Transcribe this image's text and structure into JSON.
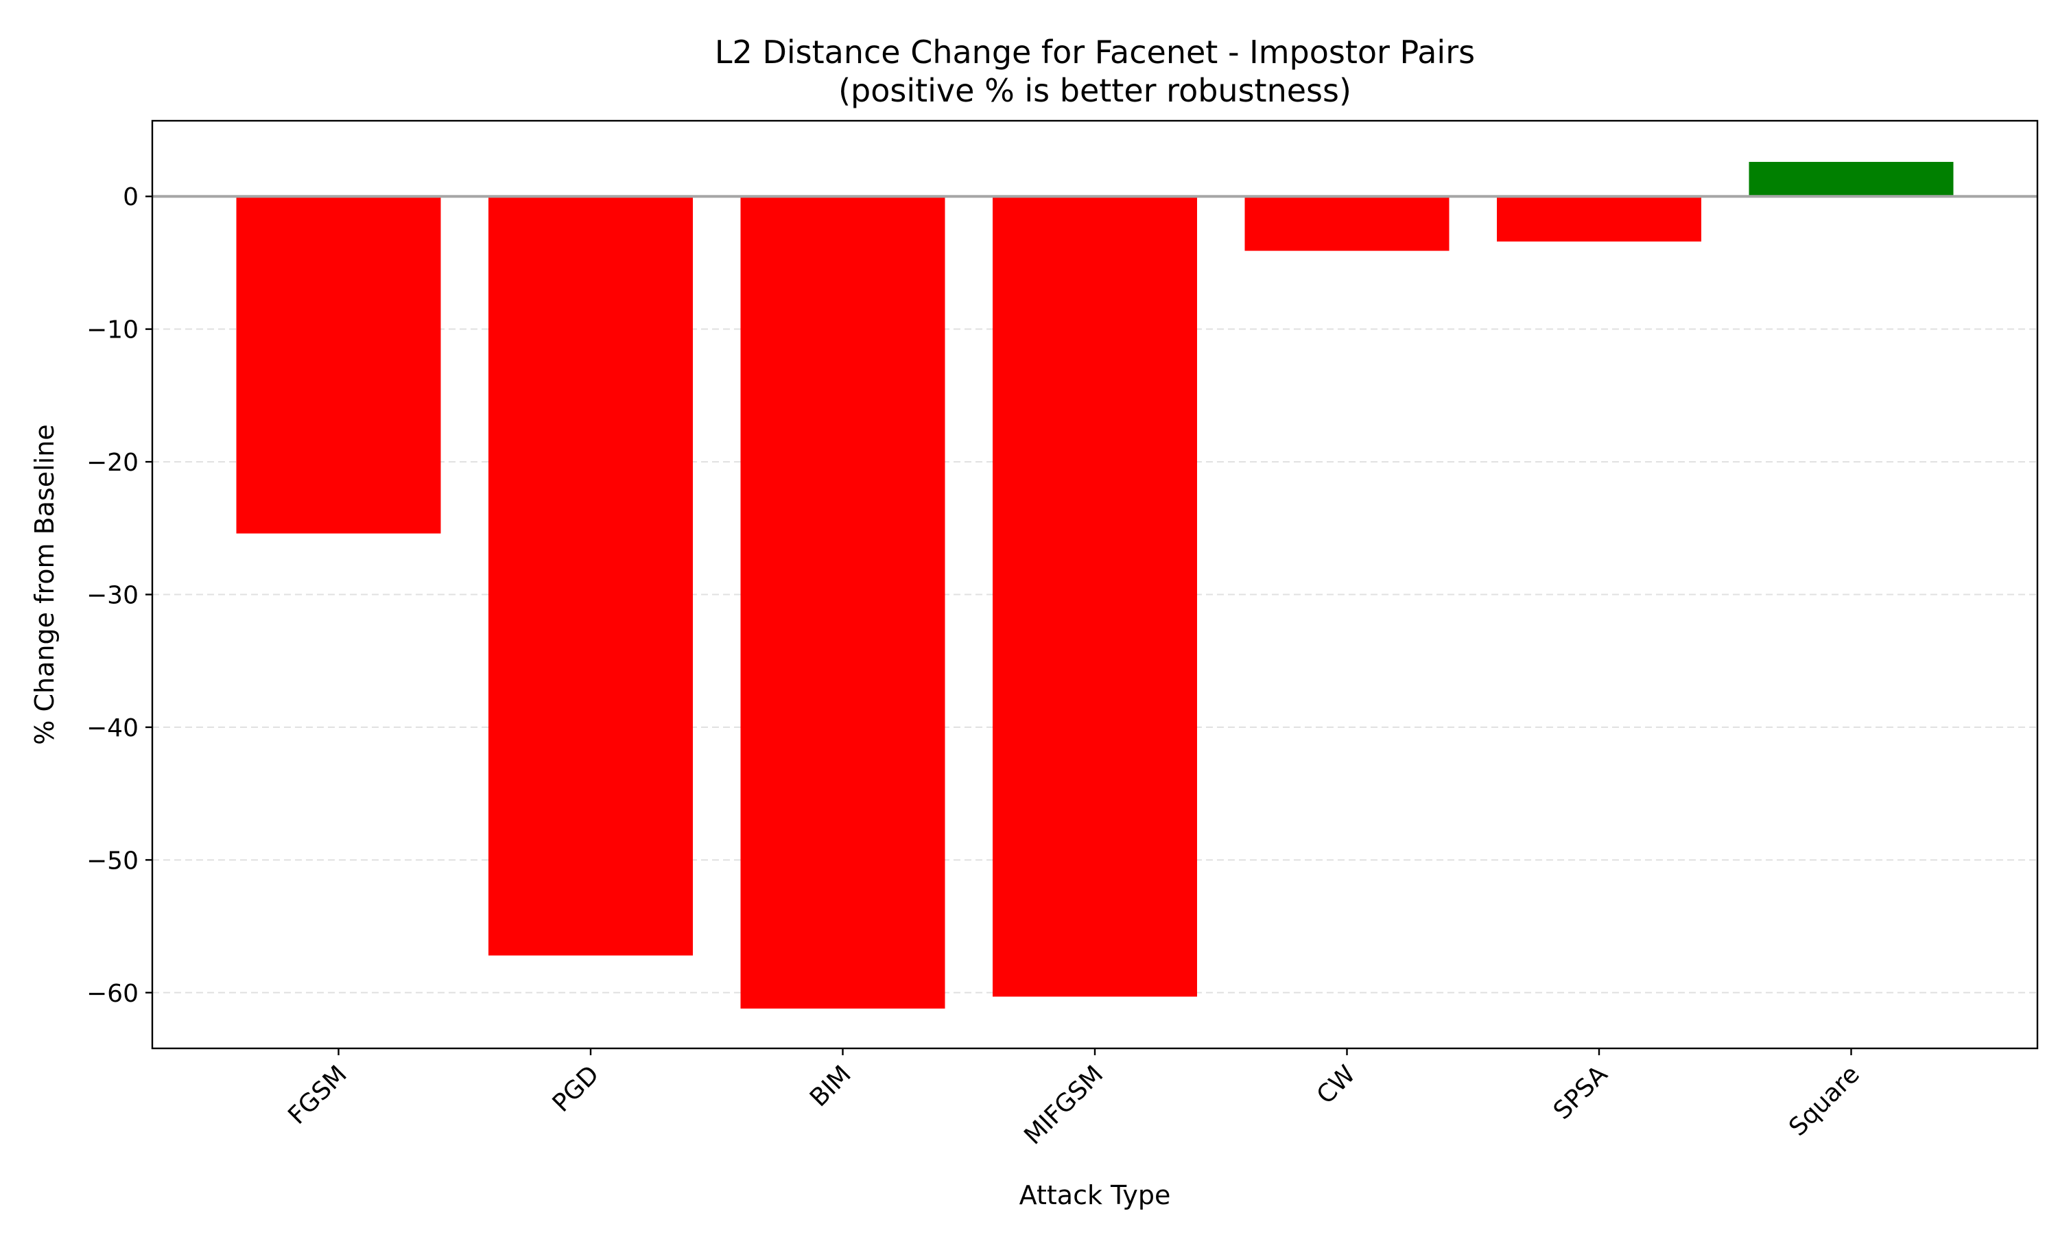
{
  "chart_data": {
    "type": "bar",
    "title": "L2 Distance Change for Facenet - Impostor Pairs",
    "subtitle": "(positive % is better robustness)",
    "xlabel": "Attack Type",
    "ylabel": "% Change from Baseline",
    "categories": [
      "FGSM",
      "PGD",
      "BIM",
      "MIFGSM",
      "CW",
      "SPSA",
      "Square"
    ],
    "values": [
      -25.4,
      -57.2,
      -61.2,
      -60.3,
      -4.1,
      -3.4,
      2.6
    ],
    "ylim": [
      -64.2,
      5.7
    ],
    "yticks": [
      0,
      -10,
      -20,
      -30,
      -40,
      -50,
      -60
    ],
    "ytick_labels": [
      "0",
      "−10",
      "−20",
      "−30",
      "−40",
      "−50",
      "−60"
    ],
    "grid": "y-dashed",
    "colors": {
      "negative": "#ff0000",
      "positive": "#008000",
      "zero_line": "#a6a6a6",
      "grid": "#e0e0e0"
    }
  }
}
